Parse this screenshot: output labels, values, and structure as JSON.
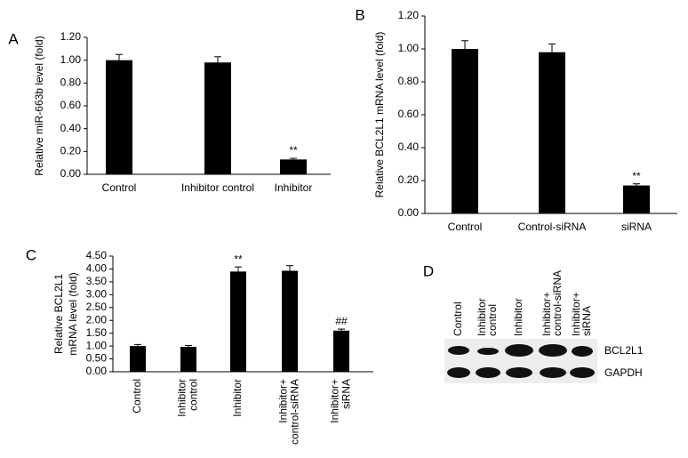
{
  "chart_data": [
    {
      "type": "bar",
      "panel_label": "A",
      "ylabel": [
        "Relative miR-663b level (fold)"
      ],
      "categories": [
        [
          "Control"
        ],
        [
          "Inhibitor control"
        ],
        [
          "Inhibitor"
        ]
      ],
      "values": [
        1.0,
        0.98,
        0.13
      ],
      "errors": [
        0.05,
        0.05,
        0.01
      ],
      "annotations": [
        null,
        null,
        "**"
      ],
      "color": "#000000",
      "ylim": [
        0,
        1.2
      ],
      "yticks": [
        {
          "value": 0,
          "label": "0.00"
        },
        {
          "value": 0.2,
          "label": "0.20"
        },
        {
          "value": 0.4,
          "label": "0.40"
        },
        {
          "value": 0.6,
          "label": "0.60"
        },
        {
          "value": 0.8,
          "label": "0.80"
        },
        {
          "value": 1.0,
          "label": "1.00"
        },
        {
          "value": 1.2,
          "label": "1.20"
        }
      ]
    },
    {
      "type": "bar",
      "panel_label": "B",
      "ylabel": [
        "Relative BCL2L1 mRNA level (fold)"
      ],
      "categories": [
        [
          "Control"
        ],
        [
          "Control-siRNA"
        ],
        [
          "siRNA"
        ]
      ],
      "values": [
        1.0,
        0.98,
        0.17
      ],
      "errors": [
        0.05,
        0.05,
        0.01
      ],
      "annotations": [
        null,
        null,
        "**"
      ],
      "color": "#000000",
      "ylim": [
        0,
        1.2
      ],
      "yticks": [
        {
          "value": 0,
          "label": "0.00"
        },
        {
          "value": 0.2,
          "label": "0.20"
        },
        {
          "value": 0.4,
          "label": "0.40"
        },
        {
          "value": 0.6,
          "label": "0.60"
        },
        {
          "value": 0.8,
          "label": "0.80"
        },
        {
          "value": 1.0,
          "label": "1.00"
        },
        {
          "value": 1.2,
          "label": "1.20"
        }
      ]
    },
    {
      "type": "bar",
      "panel_label": "C",
      "ylabel": [
        "Relative BCL2L1",
        "mRNA level (fold)"
      ],
      "categories": [
        [
          "Control"
        ],
        [
          "Inhibitor",
          "control"
        ],
        [
          "Inhibitor"
        ],
        [
          "Inhibitor+",
          "control-siRNA"
        ],
        [
          "Inhibitor+",
          "siRNA"
        ]
      ],
      "values": [
        1.0,
        0.97,
        3.9,
        3.93,
        1.6
      ],
      "errors": [
        0.06,
        0.05,
        0.18,
        0.2,
        0.06
      ],
      "annotations": [
        null,
        null,
        "**",
        null,
        "##"
      ],
      "color": "#000000",
      "ylim": [
        0,
        4.5
      ],
      "yticks": [
        {
          "value": 0,
          "label": "0.00"
        },
        {
          "value": 0.5,
          "label": "0.50"
        },
        {
          "value": 1.0,
          "label": "1.00"
        },
        {
          "value": 1.5,
          "label": "1.50"
        },
        {
          "value": 2.0,
          "label": "2.00"
        },
        {
          "value": 2.5,
          "label": "2.50"
        },
        {
          "value": 3.0,
          "label": "3.00"
        },
        {
          "value": 3.5,
          "label": "3.50"
        },
        {
          "value": 4.0,
          "label": "4.00"
        },
        {
          "value": 4.5,
          "label": "4.50"
        }
      ]
    }
  ],
  "blot": {
    "panel_label": "D",
    "lanes": [
      [
        "Control"
      ],
      [
        "Inhibitor",
        "control"
      ],
      [
        "Inhibitor"
      ],
      [
        "Inhibitor+",
        "control-siRNA"
      ],
      [
        "Inhibitor+",
        "siRNA"
      ]
    ],
    "bands": [
      "BCL2L1",
      "GAPDH"
    ]
  }
}
